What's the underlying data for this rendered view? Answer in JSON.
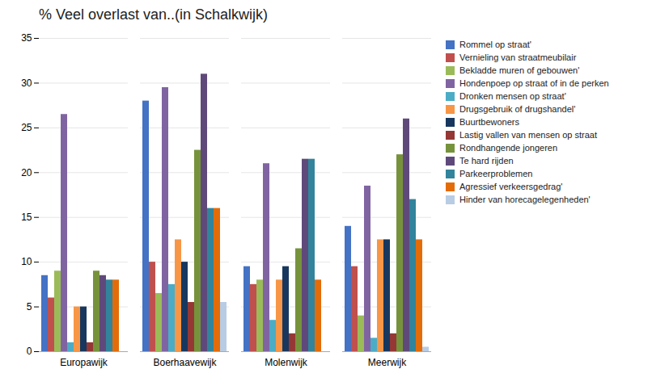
{
  "chart_data": {
    "type": "bar",
    "title": "% Veel overlast van..(in Schalkwijk)",
    "categories": [
      "Europawijk",
      "Boerhaavewijk",
      "Molenwijk",
      "Meerwijk"
    ],
    "series": [
      {
        "name": "Rommel op straat'",
        "color": "#4472C4",
        "values": [
          8.5,
          28.0,
          9.5,
          14.0
        ]
      },
      {
        "name": "Vernieling van straatmeubilair",
        "color": "#C0504D",
        "values": [
          6.0,
          10.0,
          7.5,
          9.5
        ]
      },
      {
        "name": "Bekladde muren of gebouwen'",
        "color": "#9BBB59",
        "values": [
          9.0,
          6.5,
          8.0,
          4.0
        ]
      },
      {
        "name": "Hondenpoep op straat of in de perken",
        "color": "#8064A2",
        "values": [
          26.5,
          29.5,
          21.0,
          18.5
        ]
      },
      {
        "name": "Dronken mensen op straat'",
        "color": "#4BACC6",
        "values": [
          1.0,
          7.5,
          3.5,
          1.5
        ]
      },
      {
        "name": "Drugsgebruik of drugshandel'",
        "color": "#F79646",
        "values": [
          5.0,
          12.5,
          8.0,
          12.5
        ]
      },
      {
        "name": "Buurtbewoners",
        "color": "#17375E",
        "values": [
          5.0,
          10.0,
          9.5,
          12.5
        ]
      },
      {
        "name": "Lastig vallen van mensen op straat",
        "color": "#953735",
        "values": [
          1.0,
          5.5,
          2.0,
          2.0
        ]
      },
      {
        "name": "Rondhangende jongeren",
        "color": "#76933C",
        "values": [
          9.0,
          22.5,
          11.5,
          22.0
        ]
      },
      {
        "name": "Te hard rijden",
        "color": "#5F497A",
        "values": [
          8.5,
          31.0,
          21.5,
          26.0
        ]
      },
      {
        "name": "Parkeerproblemen",
        "color": "#31849B",
        "values": [
          8.0,
          16.0,
          21.5,
          17.0
        ]
      },
      {
        "name": "Agressief verkeersgedrag'",
        "color": "#E36C09",
        "values": [
          8.0,
          16.0,
          8.0,
          12.5
        ]
      },
      {
        "name": "Hinder van horecagelegenheden'",
        "color": "#B8CCE4",
        "values": [
          0.0,
          5.5,
          0.0,
          0.5
        ]
      }
    ],
    "ylim": [
      0,
      35
    ],
    "yticks": [
      0,
      5,
      10,
      15,
      20,
      25,
      30,
      35
    ],
    "grid": true,
    "legend": "right"
  }
}
